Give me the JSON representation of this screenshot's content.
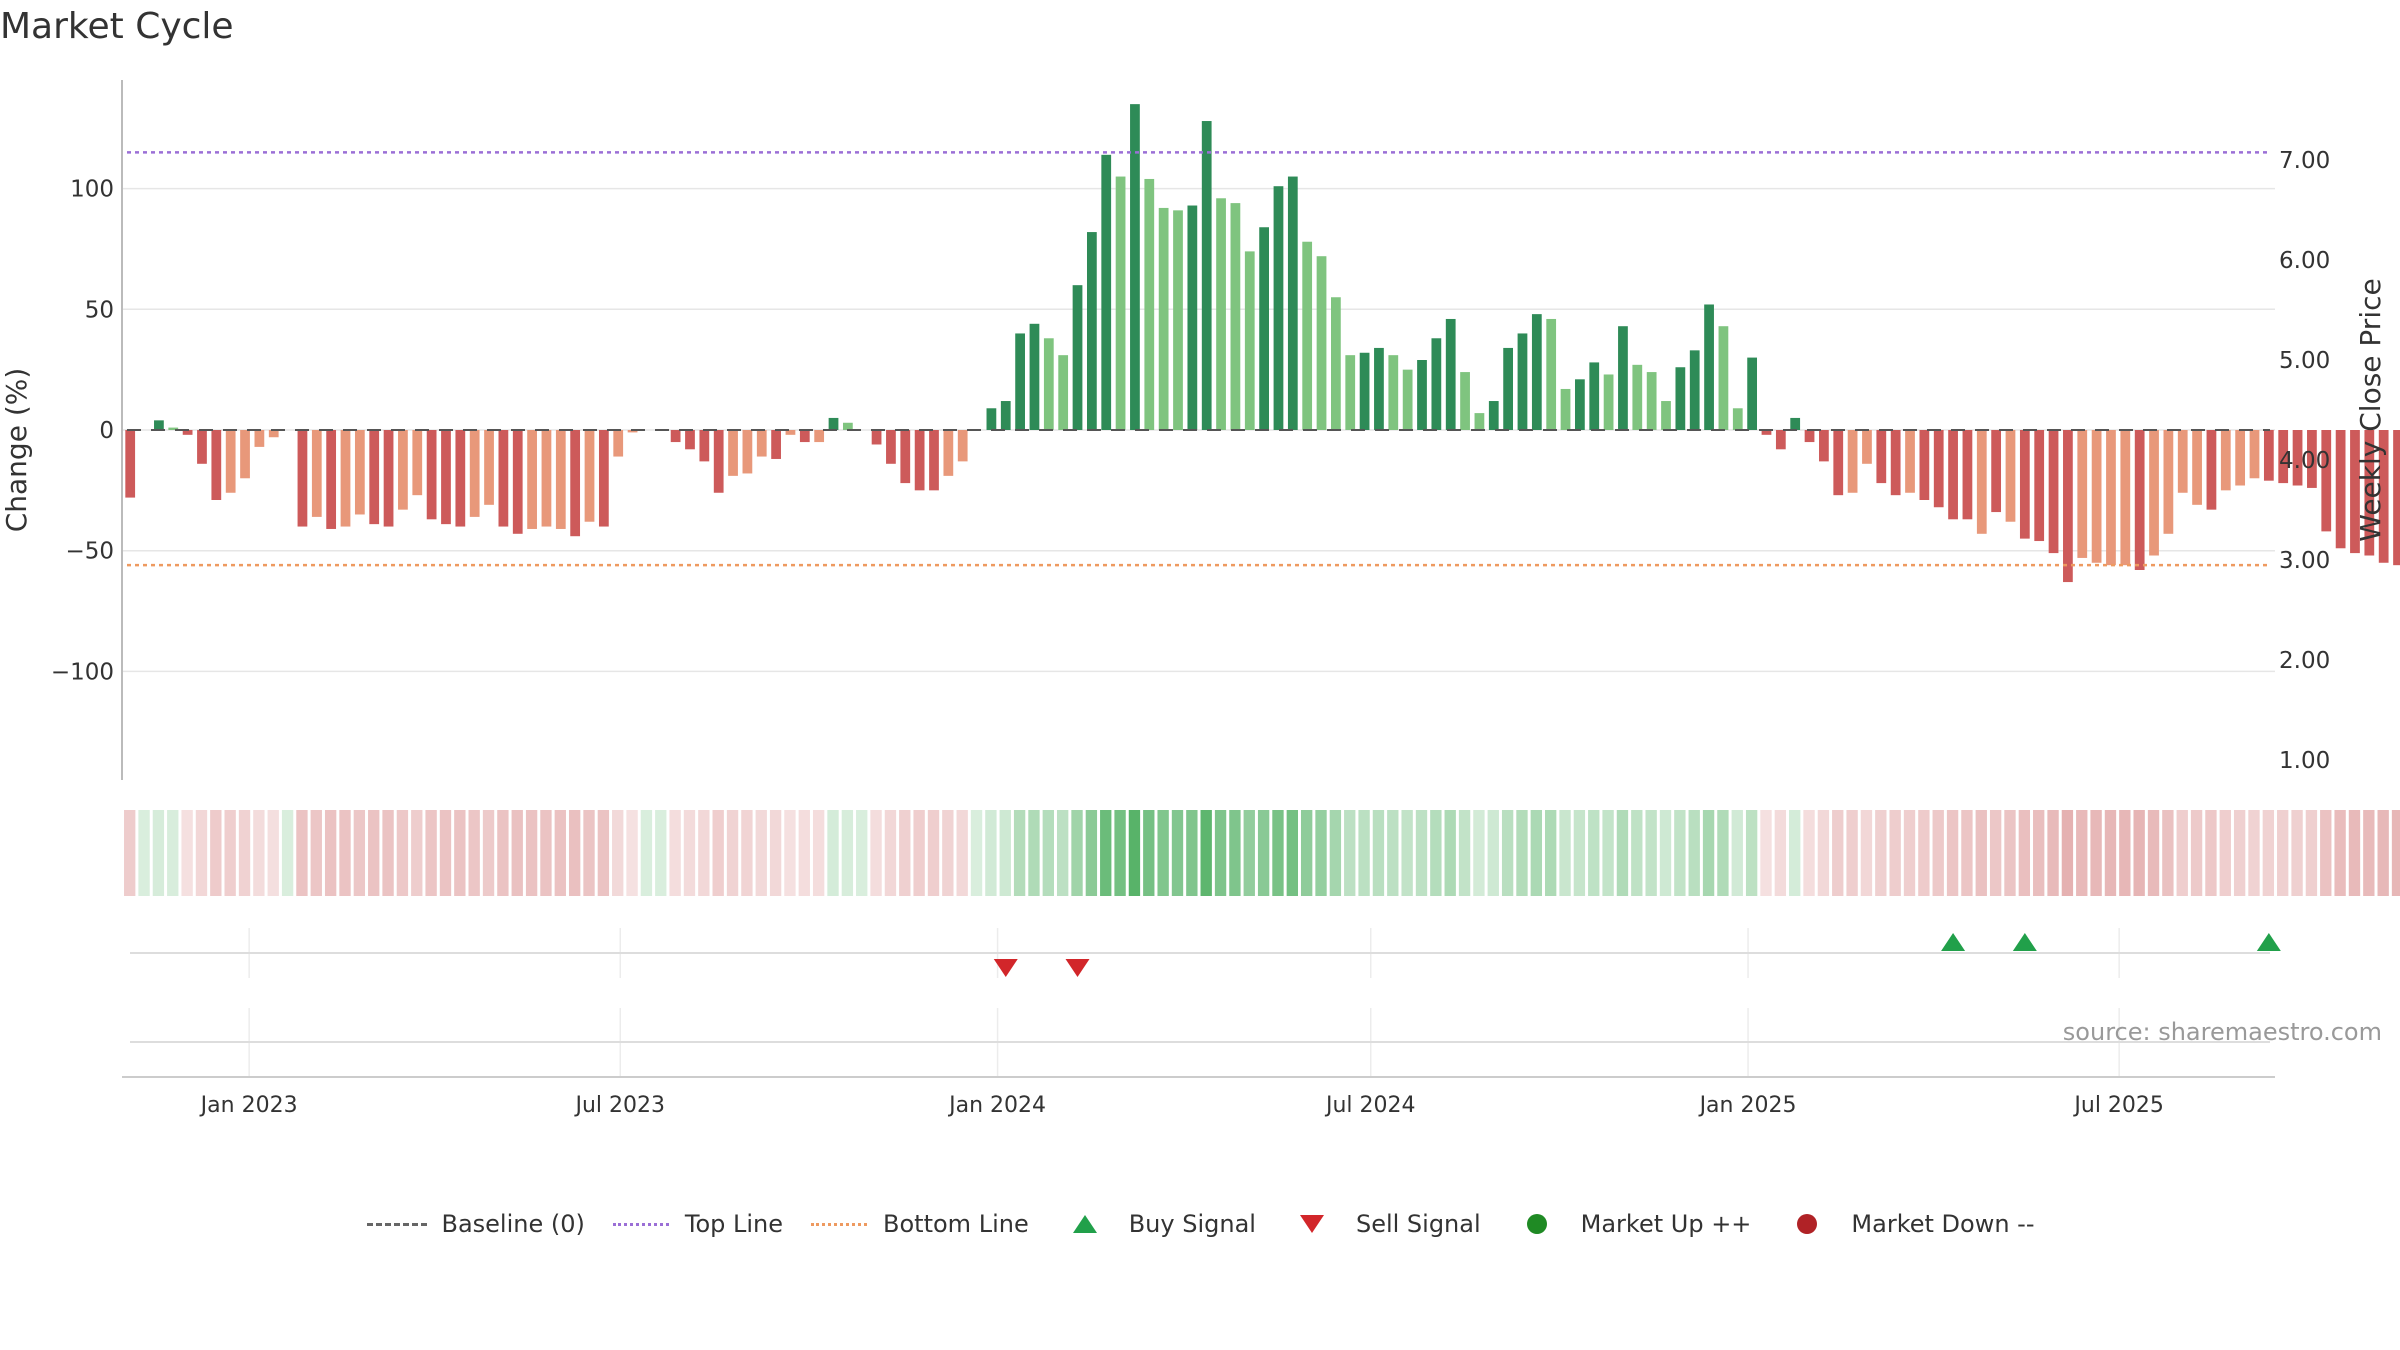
{
  "title": "Market Cycle",
  "source": "source: sharemaestro.com",
  "legend": {
    "baseline": "Baseline (0)",
    "top_line": "Top Line",
    "bottom_line": "Bottom Line",
    "buy": "Buy Signal",
    "sell": "Sell Signal",
    "up": "Market Up ++",
    "down": "Market Down --"
  },
  "colors": {
    "dark_green": "#2e8b57",
    "light_green": "#7fc47f",
    "dark_red": "#cd5a5a",
    "light_red": "#e8987a",
    "top_line": "#9b6fd6",
    "bottom_line": "#ee9a60",
    "buy": "#21a04a",
    "sell": "#d2262a"
  },
  "chart_data": {
    "type": "bar",
    "ylabel": "Change (%)",
    "y2label": "Weekly Close Price",
    "ylim": [
      -145,
      145
    ],
    "y2lim": [
      0.8,
      7.8
    ],
    "yticks": [
      100,
      50,
      0,
      -50,
      -100
    ],
    "ytick_labels": [
      "100",
      "50",
      "0",
      "−50",
      "−100"
    ],
    "y2ticks": [
      7.0,
      6.0,
      5.0,
      4.0,
      3.0,
      2.0,
      1.0
    ],
    "y2tick_labels": [
      "7.00",
      "6.00",
      "5.00",
      "4.00",
      "3.00",
      "2.00",
      "1.00"
    ],
    "top_line": 115,
    "bottom_line": -56,
    "baseline": 0,
    "xlim": [
      "2022-10-31",
      "2025-09-15"
    ],
    "x_ticks": [
      "2023-01-01",
      "2023-07-01",
      "2024-01-01",
      "2024-07-01",
      "2025-01-01",
      "2025-07-01"
    ],
    "x_tick_labels": [
      "Jan 2023",
      "Jul 2023",
      "Jan 2024",
      "Jul 2024",
      "Jan 2025",
      "Jul 2025"
    ],
    "start_week": "2022-11-04",
    "values": [
      -28,
      0,
      4,
      1,
      -2,
      -14,
      -29,
      -26,
      -20,
      -7,
      -3,
      0,
      -40,
      -36,
      -41,
      -40,
      -35,
      -39,
      -40,
      -33,
      -27,
      -37,
      -39,
      -40,
      -36,
      -31,
      -40,
      -43,
      -41,
      -40,
      -41,
      -44,
      -38,
      -40,
      -11,
      -1,
      0,
      0,
      -5,
      -8,
      -13,
      -26,
      -19,
      -18,
      -11,
      -12,
      -2,
      -5,
      -5,
      5,
      3,
      0,
      -6,
      -14,
      -22,
      -25,
      -25,
      -19,
      -13,
      0,
      9,
      12,
      40,
      44,
      38,
      31,
      60,
      82,
      114,
      105,
      135,
      104,
      92,
      91,
      93,
      128,
      96,
      94,
      74,
      84,
      101,
      105,
      78,
      72,
      55,
      31,
      32,
      34,
      31,
      25,
      29,
      38,
      46,
      24,
      7,
      12,
      34,
      40,
      48,
      46,
      17,
      21,
      28,
      23,
      43,
      27,
      24,
      12,
      26,
      33,
      52,
      43,
      9,
      30,
      -2,
      -8,
      5,
      -5,
      -13,
      -27,
      -26,
      -14,
      -22,
      -27,
      -26,
      -29,
      -32,
      -37,
      -37,
      -43,
      -34,
      -38,
      -45,
      -46,
      -51,
      -63,
      -53,
      -55,
      -56,
      -56,
      -58,
      -52,
      -43,
      -26,
      -31,
      -33,
      -25,
      -23,
      -20,
      -21,
      -22,
      -23,
      -24,
      -42,
      -49,
      -51,
      -52,
      -55,
      -56
    ],
    "shades": [
      "dark",
      "light",
      "dark",
      "light",
      "dark",
      "dark",
      "dark",
      "light",
      "light",
      "light",
      "light",
      "light",
      "dark",
      "light",
      "dark",
      "light",
      "light",
      "dark",
      "dark",
      "light",
      "light",
      "dark",
      "dark",
      "dark",
      "light",
      "light",
      "dark",
      "dark",
      "light",
      "light",
      "light",
      "dark",
      "light",
      "dark",
      "light",
      "light",
      "light",
      "light",
      "dark",
      "dark",
      "dark",
      "dark",
      "light",
      "light",
      "light",
      "dark",
      "light",
      "dark",
      "light",
      "dark",
      "light",
      "light",
      "dark",
      "dark",
      "dark",
      "dark",
      "dark",
      "light",
      "light",
      "light",
      "dark",
      "dark",
      "dark",
      "dark",
      "light",
      "light",
      "dark",
      "dark",
      "dark",
      "light",
      "dark",
      "light",
      "light",
      "light",
      "dark",
      "dark",
      "light",
      "light",
      "light",
      "dark",
      "dark",
      "dark",
      "light",
      "light",
      "light",
      "light",
      "dark",
      "dark",
      "light",
      "light",
      "dark",
      "dark",
      "dark",
      "light",
      "light",
      "dark",
      "dark",
      "dark",
      "dark",
      "light",
      "light",
      "dark",
      "dark",
      "light",
      "dark",
      "light",
      "light",
      "light",
      "dark",
      "dark",
      "dark",
      "light",
      "light",
      "dark",
      "dark",
      "dark",
      "dark",
      "dark",
      "dark",
      "dark",
      "light",
      "light",
      "dark",
      "dark",
      "light",
      "dark",
      "dark",
      "dark",
      "dark",
      "light",
      "dark",
      "light",
      "dark",
      "dark",
      "dark",
      "dark",
      "light",
      "light",
      "light",
      "light",
      "dark",
      "light",
      "light",
      "light",
      "light",
      "dark",
      "light",
      "light",
      "light",
      "dark",
      "dark",
      "dark",
      "dark",
      "dark",
      "dark",
      "dark",
      "dark",
      "dark",
      "dark"
    ],
    "buy_signals": [
      "2025-04-11",
      "2025-05-16",
      "2025-09-12"
    ],
    "sell_signals": [
      "2024-01-05",
      "2024-02-09"
    ]
  }
}
